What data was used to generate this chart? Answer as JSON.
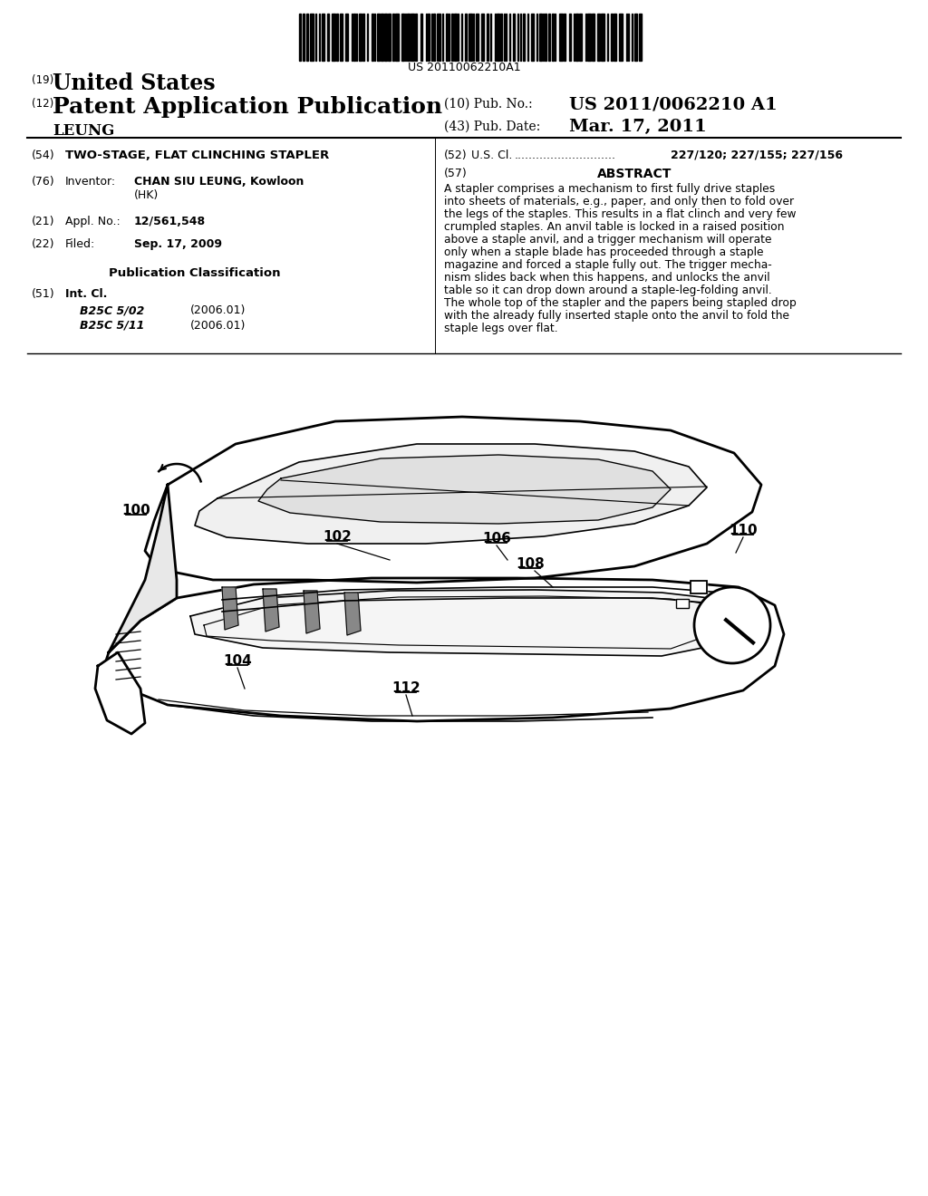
{
  "bg_color": "#ffffff",
  "barcode_text": "US 20110062210A1",
  "header": {
    "country_label": "(19)",
    "country": "United States",
    "type_label": "(12)",
    "type": "Patent Application Publication",
    "pub_no_label": "(10) Pub. No.:",
    "pub_no": "US 2011/0062210 A1",
    "date_label": "(43) Pub. Date:",
    "date": "Mar. 17, 2011",
    "applicant": "LEUNG"
  },
  "fields": {
    "title_num": "(54)",
    "title": "TWO-STAGE, FLAT CLINCHING STAPLER",
    "us_cl_num": "(52)",
    "us_cl_label": "U.S. Cl.",
    "us_cl_dots": "............................",
    "us_cl_val": "227/120; 227/155; 227/156",
    "inventor_num": "(76)",
    "inventor_label": "Inventor:",
    "inventor_name": "CHAN SIU LEUNG",
    "inventor_city": ", Kowloon",
    "inventor_country": "(HK)",
    "abstract_num": "(57)",
    "abstract_label": "ABSTRACT",
    "abstract_lines": [
      "A stapler comprises a mechanism to first fully drive staples",
      "into sheets of materials, e.g., paper, and only then to fold over",
      "the legs of the staples. This results in a flat clinch and very few",
      "crumpled staples. An anvil table is locked in a raised position",
      "above a staple anvil, and a trigger mechanism will operate",
      "only when a staple blade has proceeded through a staple",
      "magazine and forced a staple fully out. The trigger mecha-",
      "nism slides back when this happens, and unlocks the anvil",
      "table so it can drop down around a staple-leg-folding anvil.",
      "The whole top of the stapler and the papers being stapled drop",
      "with the already fully inserted staple onto the anvil to fold the",
      "staple legs over flat."
    ],
    "appl_num": "(21)",
    "appl_label": "Appl. No.:",
    "appl_val": "12/561,548",
    "filed_num": "(22)",
    "filed_label": "Filed:",
    "filed_val": "Sep. 17, 2009",
    "pub_class_label": "Publication Classification",
    "int_cl_num": "(51)",
    "int_cl_label": "Int. Cl.",
    "int_cl_entries": [
      [
        "B25C 5/02",
        "(2006.01)"
      ],
      [
        "B25C 5/11",
        "(2006.01)"
      ]
    ]
  }
}
